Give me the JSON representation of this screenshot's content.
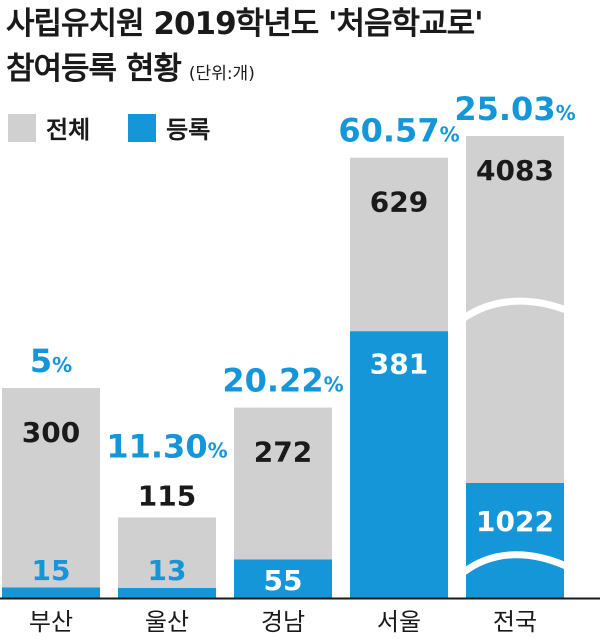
{
  "title": {
    "line1": "사립유치원 2019학년도 '처음학교로'",
    "line2": "참여등록 현황",
    "unit": "(단위:개)"
  },
  "legend": [
    {
      "label": "전체",
      "color": "#d0d0d0"
    },
    {
      "label": "등록",
      "color": "#1596d8"
    }
  ],
  "chart_data": {
    "type": "bar",
    "categories": [
      "부산",
      "울산",
      "경남",
      "서울",
      "전국"
    ],
    "series": [
      {
        "name": "전체",
        "values": [
          300,
          115,
          272,
          629,
          4083
        ]
      },
      {
        "name": "등록",
        "values": [
          15,
          13,
          55,
          381,
          1022
        ]
      }
    ],
    "percent_labels": [
      "5%",
      "11.30%",
      "20.22%",
      "60.57%",
      "25.03%"
    ],
    "broken_axis_category": "전국",
    "colors": {
      "total": "#d0d0d0",
      "registered": "#1596d8",
      "percent": "#1596d8"
    }
  }
}
